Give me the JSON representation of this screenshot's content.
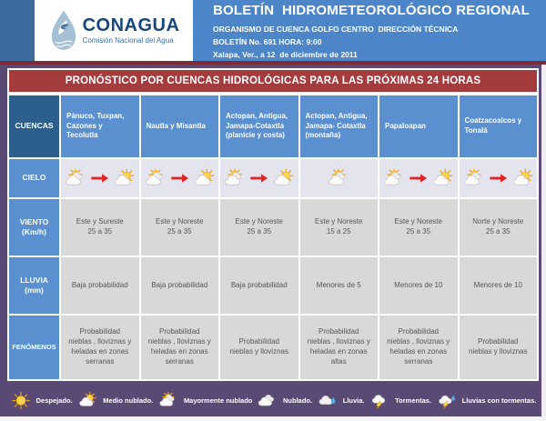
{
  "header": {
    "logo": {
      "name": "CONAGUA",
      "subtitle": "Comisión Nacional del Agua"
    },
    "title": "BOLETÍN  HIDROMETEOROLÓGICO REGIONAL",
    "line1": "ORGANISMO DE CUENCA GOLFO CENTRO  DIRECCIÓN TÉCNICA",
    "line2": "BOLETÍN No. 691 HORA: 9:00",
    "line3": "Xalapa, Ver., a 12  de diciembre de 2011"
  },
  "banner": {
    "title": "PRONÓSTICO POR CUENCAS HIDROLÓGICAS PARA LAS PRÓXIMAS 24 HORAS"
  },
  "table": {
    "corner_label": "CUENCAS",
    "columns": [
      "Pánuco, Tuxpan, Cazones y Tecolutla",
      "Nautla y Misantla",
      "Actopan, Antigua, Jamapa-Cotaxtla (planicie y costa)",
      "Actopan, Antigua, Jamapa- Cotaxtla (montaña)",
      "Papaloapan",
      "Coatzacoalcos y Tonalá"
    ],
    "rows": [
      {
        "id": "cielo",
        "label": "CIELO",
        "type": "icons",
        "cells": [
          [
            "mayormente-nublado",
            "arrow",
            "medio-nublado"
          ],
          [
            "mayormente-nublado",
            "arrow",
            "medio-nublado"
          ],
          [
            "mayormente-nublado",
            "arrow",
            "medio-nublado"
          ],
          [
            "mayormente-nublado"
          ],
          [
            "mayormente-nublado",
            "arrow",
            "medio-nublado"
          ],
          [
            "mayormente-nublado",
            "arrow",
            "medio-nublado"
          ]
        ]
      },
      {
        "id": "viento",
        "label": "VIENTO",
        "sublabel": "(Km/h)",
        "type": "text",
        "cells": [
          "Este  y Sureste\n25 a 35",
          "Este y Noreste\n25 a 35",
          "Este y Noreste\n25 a 35",
          "Este y Noreste\n15 a 25",
          "Este y Noreste\n25 a 35",
          "Norte y Noreste\n25 a 35"
        ]
      },
      {
        "id": "lluvia",
        "label": "LLUVIA",
        "sublabel": "(mm)",
        "type": "text",
        "cells": [
          "Baja probabilidad",
          "Baja probabilidad",
          "Baja probabilidad",
          "Menores de 5",
          "Menores de 10",
          "Menores de 10"
        ]
      },
      {
        "id": "fenomenos",
        "label": "FENÓMENOS",
        "type": "text",
        "cells": [
          "Probabilidad\nnieblas , lloviznas y\nheladas en zonas\nserranas",
          "Probabilidad\nnieblas , lloviznas y\nheladas en zonas\nserranas",
          "Probabilidad\nnieblas y lloviznas",
          "Probabilidad\nnieblas , lloviznas y\nheladas en zonas\naltas",
          "Probabilidad\nnieblas , lloviznas y\nheladas en zonas\nserranas",
          "Probabilidad\nnieblas y lloviznas"
        ]
      }
    ]
  },
  "legend": [
    {
      "icon": "despejado",
      "label": "Despejado."
    },
    {
      "icon": "medio-nublado",
      "label": "Medio nublado."
    },
    {
      "icon": "mayormente-nublado",
      "label": "Mayormente nublado"
    },
    {
      "icon": "nublado",
      "label": "Nublado."
    },
    {
      "icon": "lluvia",
      "label": "Lluvia."
    },
    {
      "icon": "tormentas",
      "label": "Tormentas."
    },
    {
      "icon": "lluvias-con-tormentas",
      "label": "Lluvias con tormentas."
    }
  ],
  "colors": {
    "page_purple": "#594a75",
    "header_blue": "#4c85c8",
    "header_band_blue": "#3e6b9e",
    "banner_red": "#a43b3c",
    "maroon_line": "#7d2b36",
    "corner_dark_blue": "#2d5f8d",
    "label_blue": "#5a8fd0",
    "sky_cell_bg": "#e4e4ef",
    "data_cell_bg": "#d8d8d8",
    "arrow_red": "#e32222"
  }
}
